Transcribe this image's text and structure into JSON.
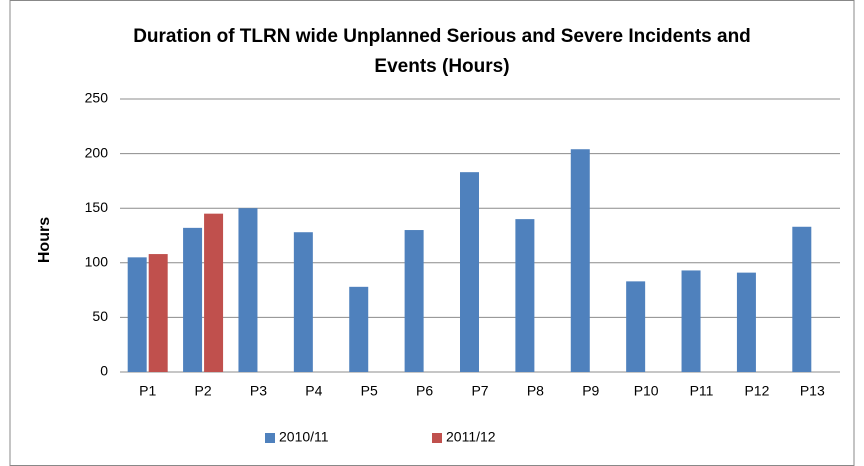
{
  "chart_data": {
    "type": "bar",
    "title": "Duration of TLRN wide Unplanned Serious and Severe Incidents and Events (Hours)",
    "y_label": "Hours",
    "categories": [
      "P1",
      "P2",
      "P3",
      "P4",
      "P5",
      "P6",
      "P7",
      "P8",
      "P9",
      "P10",
      "P11",
      "P12",
      "P13"
    ],
    "series": [
      {
        "name": "2010/11",
        "color": "#4f81bd",
        "values": [
          105,
          132,
          150,
          128,
          78,
          130,
          183,
          140,
          204,
          83,
          93,
          91,
          133
        ]
      },
      {
        "name": "2011/12",
        "color": "#c0504d",
        "values": [
          108,
          145,
          null,
          null,
          null,
          null,
          null,
          null,
          null,
          null,
          null,
          null,
          null
        ]
      }
    ],
    "ylim": [
      0,
      250
    ],
    "yticks": [
      0,
      50,
      100,
      150,
      200,
      250
    ],
    "grid": true,
    "legend": "bottom"
  }
}
